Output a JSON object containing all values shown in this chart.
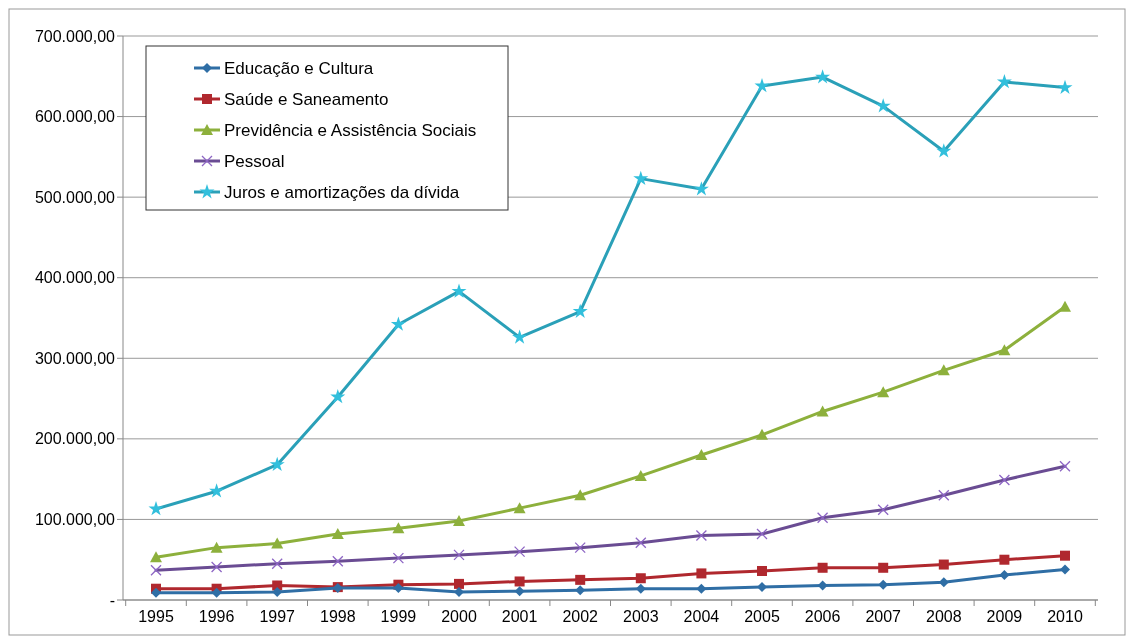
{
  "chart_data": {
    "type": "line",
    "categories": [
      "1995",
      "1996",
      "1997",
      "1998",
      "1999",
      "2000",
      "2001",
      "2002",
      "2003",
      "2004",
      "2005",
      "2006",
      "2007",
      "2008",
      "2009",
      "2010"
    ],
    "ylim": [
      0,
      700000
    ],
    "yticks": [
      {
        "value": 0,
        "label": "-"
      },
      {
        "value": 100000,
        "label": "100.000,00"
      },
      {
        "value": 200000,
        "label": "200.000,00"
      },
      {
        "value": 300000,
        "label": "300.000,00"
      },
      {
        "value": 400000,
        "label": "400.000,00"
      },
      {
        "value": 500000,
        "label": "500.000,00"
      },
      {
        "value": 600000,
        "label": "600.000,00"
      },
      {
        "value": 700000,
        "label": "700.000,00"
      }
    ],
    "grid": "y",
    "legend": "top left",
    "series": [
      {
        "name": "Educação e Cultura",
        "color": "#2f6ea5",
        "marker": "diamond",
        "values": [
          9000,
          9000,
          10000,
          15000,
          15000,
          10000,
          11000,
          12000,
          14000,
          14000,
          16000,
          18000,
          19000,
          22000,
          31000,
          38000
        ]
      },
      {
        "name": "Saúde e Saneamento",
        "color": "#b0282e",
        "marker": "square",
        "values": [
          14000,
          14000,
          18000,
          16000,
          19000,
          20000,
          23000,
          25000,
          27000,
          33000,
          36000,
          40000,
          40000,
          44000,
          50000,
          55000
        ]
      },
      {
        "name": "Previdência e Assistência Sociais",
        "color": "#8db03c",
        "marker": "triangle",
        "values": [
          53000,
          65000,
          70000,
          82000,
          89000,
          98000,
          114000,
          130000,
          154000,
          180000,
          205000,
          234000,
          258000,
          285000,
          310000,
          364000
        ]
      },
      {
        "name": "Pessoal",
        "color": "#6a4c93",
        "marker": "cross",
        "values": [
          37000,
          41000,
          45000,
          48000,
          52000,
          56000,
          60000,
          65000,
          71000,
          80000,
          82000,
          102000,
          112000,
          130000,
          149000,
          166000
        ]
      },
      {
        "name": "Juros e amortizações da dívida",
        "color": "#2aa0b8",
        "marker": "star",
        "values": [
          113000,
          135000,
          168000,
          252000,
          342000,
          383000,
          326000,
          358000,
          523000,
          510000,
          638000,
          649000,
          613000,
          557000,
          643000,
          636000
        ]
      }
    ]
  }
}
